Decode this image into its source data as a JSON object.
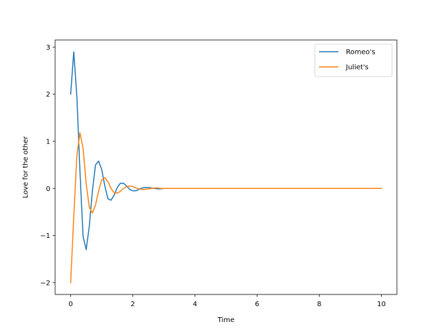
{
  "chart_data": {
    "type": "line",
    "title": "",
    "xlabel": "Time",
    "ylabel": "Love for the other",
    "xlim": [
      -0.5,
      10.5
    ],
    "ylim": [
      -2.25,
      3.15
    ],
    "x_ticks": [
      0,
      2,
      4,
      6,
      8,
      10
    ],
    "y_ticks": [
      -2,
      -1,
      0,
      1,
      2,
      3
    ],
    "x_tick_labels": [
      "0",
      "2",
      "4",
      "6",
      "8",
      "10"
    ],
    "y_tick_labels": [
      "−2",
      "−1",
      "0",
      "1",
      "2",
      "3"
    ],
    "grid": false,
    "legend_position": "top-right",
    "series": [
      {
        "name": "Romeo's",
        "color": "#1f77b4",
        "points": [
          [
            0.0,
            2.0
          ],
          [
            0.1,
            2.9
          ],
          [
            0.2,
            1.95
          ],
          [
            0.3,
            0.35
          ],
          [
            0.4,
            -1.02
          ],
          [
            0.5,
            -1.3
          ],
          [
            0.6,
            -0.8
          ],
          [
            0.7,
            -0.05
          ],
          [
            0.8,
            0.5
          ],
          [
            0.9,
            0.58
          ],
          [
            1.0,
            0.4
          ],
          [
            1.1,
            0.05
          ],
          [
            1.2,
            -0.22
          ],
          [
            1.3,
            -0.25
          ],
          [
            1.4,
            -0.14
          ],
          [
            1.5,
            0.02
          ],
          [
            1.6,
            0.11
          ],
          [
            1.7,
            0.11
          ],
          [
            1.8,
            0.05
          ],
          [
            1.9,
            -0.02
          ],
          [
            2.0,
            -0.05
          ],
          [
            2.1,
            -0.05
          ],
          [
            2.2,
            -0.02
          ],
          [
            2.3,
            0.01
          ],
          [
            2.4,
            0.02
          ],
          [
            2.5,
            0.02
          ],
          [
            2.6,
            0.01
          ],
          [
            2.7,
            0.0
          ],
          [
            2.8,
            -0.01
          ],
          [
            2.9,
            -0.01
          ],
          [
            3.0,
            0.0
          ],
          [
            3.2,
            0.0
          ],
          [
            3.5,
            0.0
          ],
          [
            4.0,
            0.0
          ],
          [
            5.0,
            0.0
          ],
          [
            6.0,
            0.0
          ],
          [
            7.0,
            0.0
          ],
          [
            8.0,
            0.0
          ],
          [
            9.0,
            0.0
          ],
          [
            10.0,
            0.0
          ]
        ]
      },
      {
        "name": "Juliet's",
        "color": "#ff7f0e",
        "points": [
          [
            0.0,
            -2.0
          ],
          [
            0.1,
            -0.6
          ],
          [
            0.2,
            0.7
          ],
          [
            0.3,
            1.18
          ],
          [
            0.4,
            0.85
          ],
          [
            0.5,
            0.1
          ],
          [
            0.6,
            -0.4
          ],
          [
            0.7,
            -0.52
          ],
          [
            0.8,
            -0.35
          ],
          [
            0.9,
            -0.05
          ],
          [
            1.0,
            0.18
          ],
          [
            1.1,
            0.23
          ],
          [
            1.2,
            0.14
          ],
          [
            1.3,
            0.0
          ],
          [
            1.4,
            -0.09
          ],
          [
            1.5,
            -0.1
          ],
          [
            1.6,
            -0.06
          ],
          [
            1.7,
            0.0
          ],
          [
            1.8,
            0.04
          ],
          [
            1.9,
            0.05
          ],
          [
            2.0,
            0.04
          ],
          [
            2.1,
            0.01
          ],
          [
            2.2,
            -0.01
          ],
          [
            2.3,
            -0.02
          ],
          [
            2.4,
            -0.02
          ],
          [
            2.5,
            -0.01
          ],
          [
            2.6,
            0.0
          ],
          [
            2.7,
            0.01
          ],
          [
            2.8,
            0.01
          ],
          [
            2.9,
            0.0
          ],
          [
            3.0,
            0.0
          ],
          [
            3.2,
            0.0
          ],
          [
            3.5,
            0.0
          ],
          [
            4.0,
            0.0
          ],
          [
            5.0,
            0.0
          ],
          [
            6.0,
            0.0
          ],
          [
            7.0,
            0.0
          ],
          [
            8.0,
            0.0
          ],
          [
            9.0,
            0.0
          ],
          [
            10.0,
            0.0
          ]
        ]
      }
    ]
  }
}
